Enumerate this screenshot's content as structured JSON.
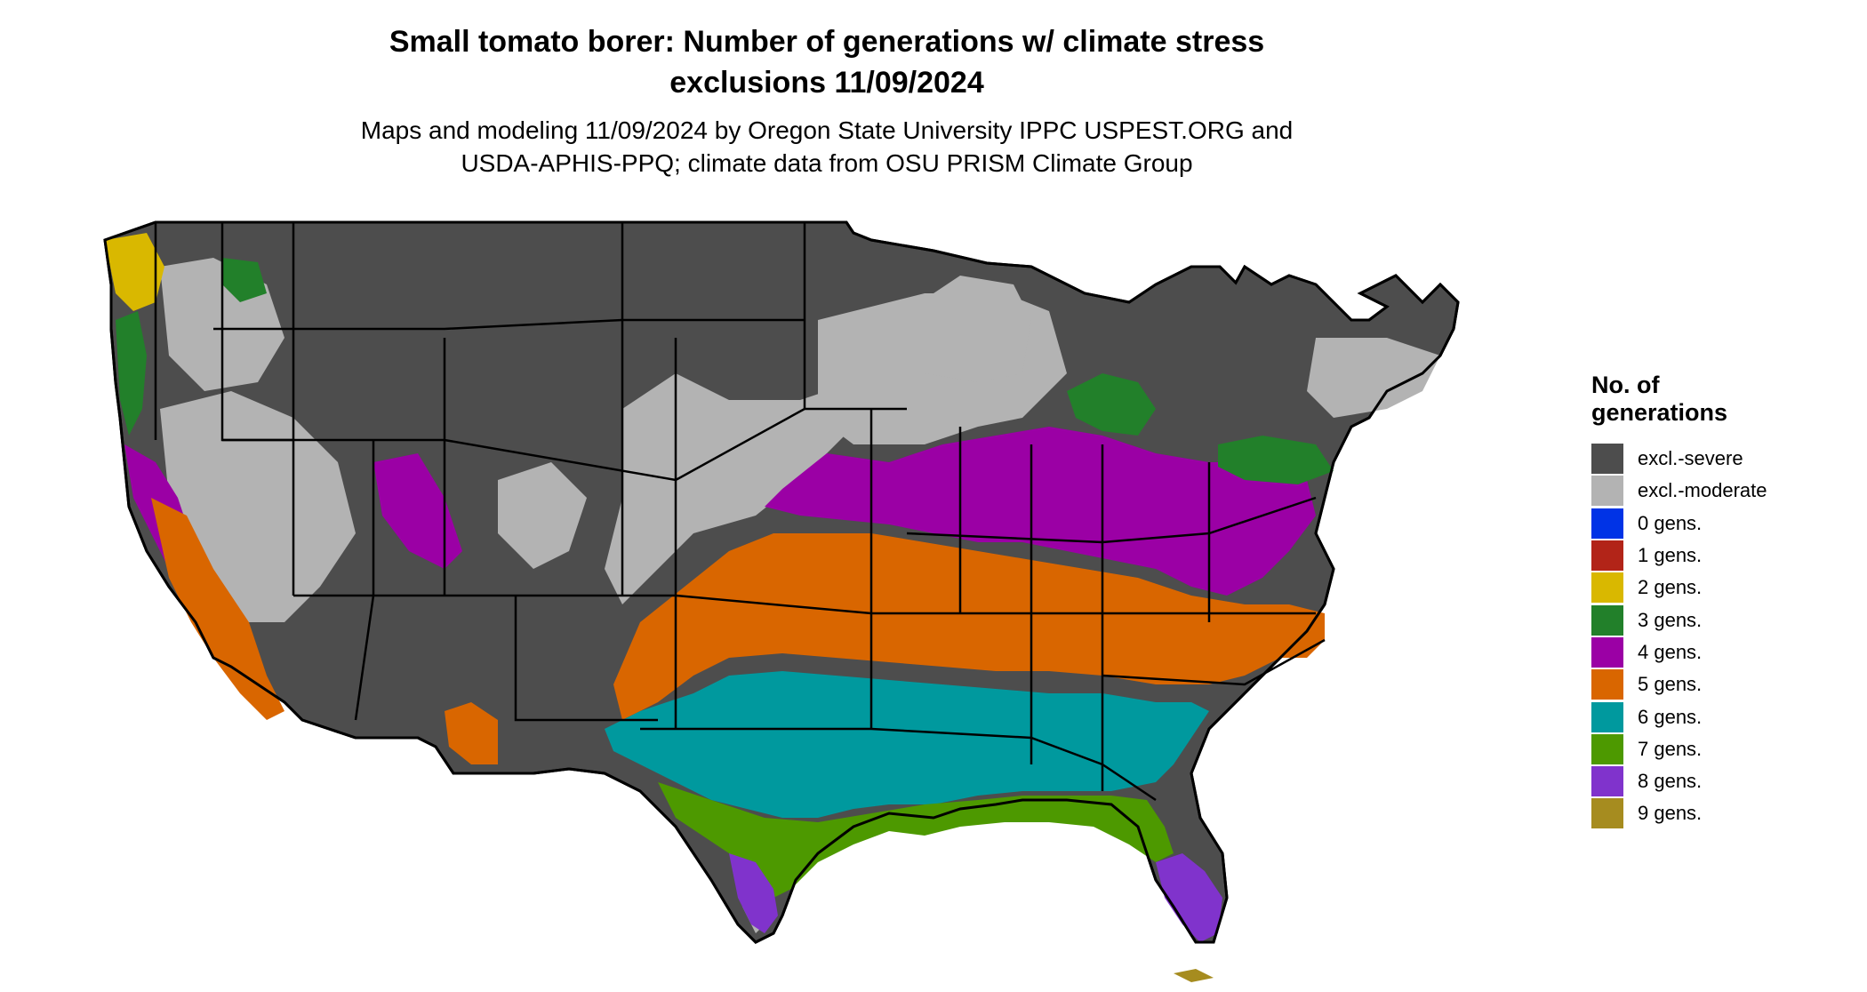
{
  "title_line1": "Small tomato borer: Number of generations w/ climate stress",
  "title_line2": "exclusions 11/09/2024",
  "subtitle_line1": "Maps and modeling 11/09/2024 by Oregon State University IPPC USPEST.ORG and",
  "subtitle_line2": "USDA-APHIS-PPQ; climate data from OSU PRISM Climate Group",
  "legend": {
    "title_line1": "No. of",
    "title_line2": "generations",
    "items": [
      {
        "label": "excl.-severe",
        "color": "#4d4d4d"
      },
      {
        "label": "excl.-moderate",
        "color": "#b3b3b3"
      },
      {
        "label": "0 gens.",
        "color": "#0033e6"
      },
      {
        "label": "1 gens.",
        "color": "#b22418"
      },
      {
        "label": "2 gens.",
        "color": "#d9b800"
      },
      {
        "label": "3 gens.",
        "color": "#22802a"
      },
      {
        "label": "4 gens.",
        "color": "#9b00a5"
      },
      {
        "label": "5 gens.",
        "color": "#d96600"
      },
      {
        "label": "6 gens.",
        "color": "#00999e"
      },
      {
        "label": "7 gens.",
        "color": "#4d9900"
      },
      {
        "label": "8 gens.",
        "color": "#8033cc"
      },
      {
        "label": "9 gens.",
        "color": "#a68c1f"
      }
    ]
  },
  "map": {
    "region": "contiguous-us",
    "fill_colors": {
      "severe": "#4d4d4d",
      "moderate": "#b3b3b3",
      "g2": "#d9b800",
      "g3": "#22802a",
      "g4": "#9b00a5",
      "g5": "#d96600",
      "g6": "#00999e",
      "g7": "#4d9900",
      "g8": "#8033cc",
      "g9": "#a68c1f",
      "border": "#000000"
    }
  }
}
